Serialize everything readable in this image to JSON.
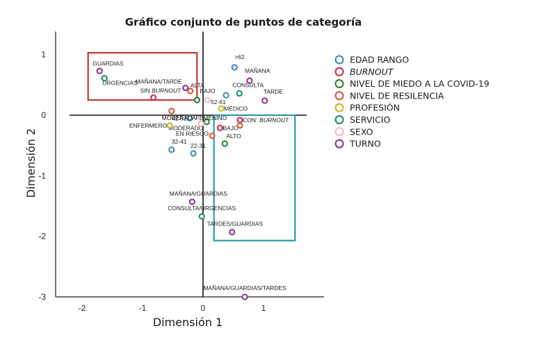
{
  "chart_data": {
    "type": "scatter",
    "title": "Gráfico conjunto de puntos de categoría",
    "xlabel": "Dimensión 1",
    "ylabel": "Dimensión 2",
    "xlim": [
      -2.43,
      2.0
    ],
    "ylim": [
      -3.0,
      1.38
    ],
    "xticks": [
      -2,
      -1,
      0,
      1
    ],
    "yticks": [
      1,
      0,
      -1,
      -2,
      -3
    ],
    "grid": false,
    "reference_lines": {
      "x": 0,
      "y": 0
    },
    "legend_position": "right",
    "legend": [
      {
        "name": "EDAD RANGO",
        "color": "#3a86b8",
        "italic": false
      },
      {
        "name": "BURNOUT",
        "color": "#c8234b",
        "italic": true
      },
      {
        "name": "NIVEL DE MIEDO A LA COVID-19",
        "color": "#1e7a2e",
        "italic": false
      },
      {
        "name": "NIVEL DE RESILENCIA",
        "color": "#d9502f",
        "italic": false
      },
      {
        "name": "PROFESIÓN",
        "color": "#c5b81c",
        "italic": false
      },
      {
        "name": "SERVICIO",
        "color": "#12896b",
        "italic": false
      },
      {
        "name": "SEXO",
        "color": "#f2b3c2",
        "italic": false
      },
      {
        "name": "TURNO",
        "color": "#8c2d86",
        "italic": false
      }
    ],
    "series": [
      {
        "name": "EDAD RANGO",
        "points": [
          {
            "label": ">62",
            "x": 0.52,
            "y": 0.79,
            "lx": 0,
            "ly": -12,
            "anchor": "start"
          },
          {
            "label": "52-61",
            "x": 0.38,
            "y": 0.33,
            "lx": -22,
            "ly": 13,
            "anchor": "start"
          },
          {
            "label": "42-51",
            "x": -0.22,
            "y": -0.05,
            "lx": -4,
            "ly": 3,
            "anchor": "end"
          },
          {
            "label": "32-41",
            "x": -0.52,
            "y": -0.57,
            "lx": 0,
            "ly": -9,
            "anchor": "start"
          },
          {
            "label": "22-31",
            "x": -0.16,
            "y": -0.63,
            "lx": -4,
            "ly": -8,
            "anchor": "start"
          }
        ]
      },
      {
        "name": "BURNOUT",
        "points": [
          {
            "label": "SIN BURNOUT",
            "x": -0.82,
            "y": 0.29,
            "lx": -19,
            "ly": -7,
            "anchor": "start",
            "mixed_italic": [
              "SIN ",
              "BURNOUT"
            ]
          },
          {
            "label": "CON´ BURNOUT",
            "x": 0.61,
            "y": -0.08,
            "lx": 4,
            "ly": 3,
            "anchor": "start",
            "mixed_italic": [
              "CON´ ",
              "BURNOUT"
            ]
          },
          {
            "label": "BAJO",
            "x": 0.28,
            "y": -0.21,
            "lx": 4,
            "ly": 3,
            "anchor": "start"
          }
        ]
      },
      {
        "name": "NIVEL DE MIEDO A LA COVID-19",
        "points": [
          {
            "label": "BAJO",
            "x": -0.1,
            "y": 0.25,
            "lx": 4,
            "ly": -10,
            "anchor": "start"
          },
          {
            "label": "MODERADO",
            "x": 0.06,
            "y": -0.11,
            "lx": -5,
            "ly": 12,
            "anchor": "end"
          },
          {
            "label": "ALTO",
            "x": 0.36,
            "y": -0.47,
            "lx": 2,
            "ly": -8,
            "anchor": "start"
          }
        ]
      },
      {
        "name": "NIVEL DE RESILENCIA",
        "points": [
          {
            "label": "ALTA",
            "x": -0.21,
            "y": 0.4,
            "lx": 0,
            "ly": -5,
            "anchor": "start"
          },
          {
            "label": "MODERADA",
            "x": -0.52,
            "y": 0.07,
            "lx": -14,
            "ly": 13,
            "anchor": "start"
          },
          {
            "label": "",
            "x": 0.61,
            "y": -0.17,
            "lx": 0,
            "ly": 0,
            "anchor": "start"
          },
          {
            "label": "EN RIESGO",
            "x": 0.15,
            "y": -0.34,
            "lx": -5,
            "ly": 0,
            "anchor": "end"
          }
        ]
      },
      {
        "name": "PROFESIÓN",
        "points": [
          {
            "label": "MÉDICO",
            "x": 0.3,
            "y": 0.11,
            "lx": 4,
            "ly": 3,
            "anchor": "start"
          },
          {
            "label": "ENFERMERO",
            "x": -0.55,
            "y": -0.17,
            "lx": -4,
            "ly": 3,
            "anchor": "end"
          }
        ]
      },
      {
        "name": "SERVICIO",
        "points": [
          {
            "label": "URGENCIAS",
            "x": -1.63,
            "y": 0.61,
            "lx": -3,
            "ly": 10,
            "anchor": "start"
          },
          {
            "label": "CONSULTA",
            "x": 0.6,
            "y": 0.36,
            "lx": -10,
            "ly": -9,
            "anchor": "start"
          },
          {
            "label": "CONSULTA/URGENCIAS",
            "x": -0.02,
            "y": -1.67,
            "lx": 0,
            "ly": -9,
            "anchor": "middle"
          }
        ]
      },
      {
        "name": "SEXO",
        "points": [
          {
            "label": "FEMENINO",
            "x": -0.03,
            "y": -0.14,
            "lx": -8,
            "ly": -5,
            "anchor": "start"
          },
          {
            "label": "",
            "x": 0.07,
            "y": 0.25,
            "lx": 0,
            "ly": 0,
            "anchor": "start"
          }
        ]
      },
      {
        "name": "TURNO",
        "points": [
          {
            "label": "GUARDIAS",
            "x": -1.71,
            "y": 0.73,
            "lx": -10,
            "ly": -8,
            "anchor": "start"
          },
          {
            "label": "MAÑANA/TARDE",
            "x": -0.29,
            "y": 0.45,
            "lx": -5,
            "ly": -6,
            "anchor": "end"
          },
          {
            "label": "MAÑANA",
            "x": 0.77,
            "y": 0.57,
            "lx": -7,
            "ly": -11,
            "anchor": "start"
          },
          {
            "label": "TARDE",
            "x": 1.02,
            "y": 0.24,
            "lx": -2,
            "ly": -10,
            "anchor": "start"
          },
          {
            "label": "MAÑANA/GUARDIAS",
            "x": -0.18,
            "y": -1.43,
            "lx": 9,
            "ly": -9,
            "anchor": "middle"
          },
          {
            "label": "TARDES/GUARDIAS",
            "x": 0.48,
            "y": -1.93,
            "lx": 4,
            "ly": -9,
            "anchor": "middle"
          },
          {
            "label": "MAÑANA/GUARDIAS/TARDES",
            "x": 0.69,
            "y": -3.0,
            "lx": 0,
            "ly": -10,
            "anchor": "middle"
          }
        ]
      }
    ],
    "annotations": [
      {
        "type": "rect",
        "color": "#c0392b",
        "x0": -1.9,
        "y0": 1.03,
        "x1": -0.1,
        "y1": 0.25
      },
      {
        "type": "rect",
        "color": "#2a9aa8",
        "x0": 0.18,
        "y0": 0.0,
        "x1": 1.52,
        "y1": -2.07
      }
    ]
  }
}
